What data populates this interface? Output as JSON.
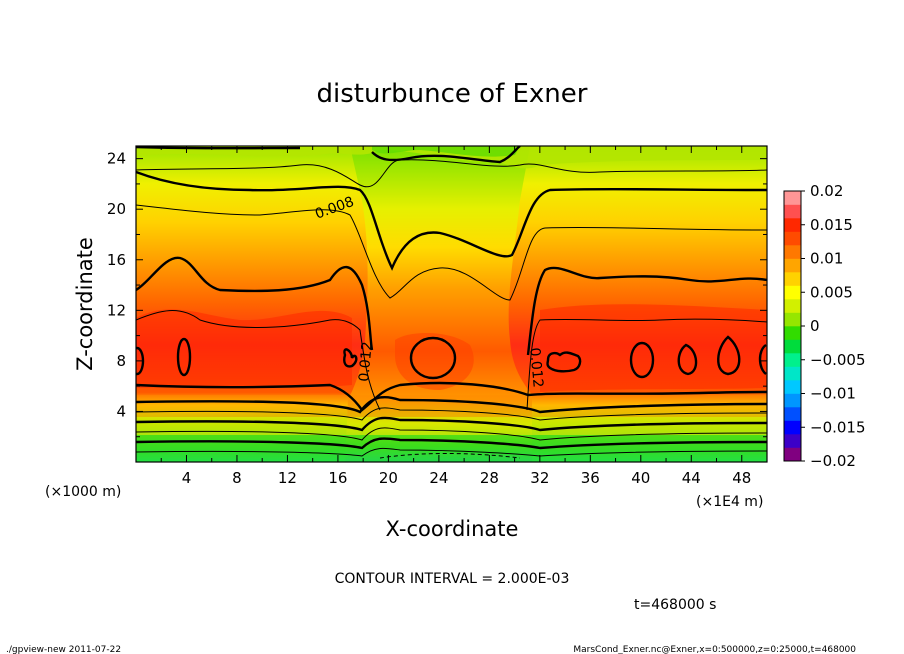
{
  "chart_data": {
    "type": "heatmap",
    "title": "disturbunce of Exner",
    "xlabel": "X-coordinate",
    "ylabel": "Z-coordinate",
    "x_unit_left": "(×1000 m)",
    "x_unit_right": "(×1E4 m)",
    "xlim": [
      0,
      50
    ],
    "ylim": [
      0,
      25
    ],
    "xticks": [
      "4",
      "8",
      "12",
      "16",
      "20",
      "24",
      "28",
      "32",
      "36",
      "40",
      "44",
      "48"
    ],
    "yticks": [
      "4",
      "8",
      "12",
      "16",
      "20",
      "24"
    ],
    "contour_interval_text": "CONTOUR INTERVAL = 2.000E-03",
    "time_text": "t=468000 s",
    "contour_labels": [
      "0.008",
      "0.012",
      "0.012"
    ],
    "colorbar": {
      "ticks": [
        "0.02",
        "0.015",
        "0.01",
        "0.005",
        "0",
        "−0.005",
        "−0.01",
        "−0.015",
        "−0.02"
      ],
      "range": [
        -0.02,
        0.02
      ],
      "colors": [
        "#800080",
        "#3c00c8",
        "#0000ff",
        "#0050ff",
        "#0096ff",
        "#00c8ff",
        "#00e6c8",
        "#00f08c",
        "#00dc3c",
        "#32dc00",
        "#96e600",
        "#d2f000",
        "#ffff00",
        "#ffd200",
        "#ffa500",
        "#ff7800",
        "#ff4b00",
        "#ff2800",
        "#ff5050",
        "#ff9696"
      ]
    },
    "key_values": {
      "x": [
        0,
        4,
        8,
        12,
        16,
        18,
        20,
        24,
        28,
        31,
        32,
        36,
        40,
        44,
        48,
        50
      ],
      "max_at_z8": [
        0.012,
        0.013,
        0.011,
        0.011,
        0.013,
        0.009,
        0.007,
        0.012,
        0.01,
        0.007,
        0.012,
        0.013,
        0.013,
        0.013,
        0.013,
        0.012
      ],
      "at_z24": [
        0.004,
        0.004,
        0.005,
        0.005,
        0.004,
        0.002,
        0.002,
        0.002,
        0.002,
        0.003,
        0.006,
        0.006,
        0.006,
        0.006,
        0.006,
        0.006
      ]
    }
  },
  "footer": {
    "left": "./gpview-new   2011-07-22",
    "right": "MarsCond_Exner.nc@Exner,x=0:500000,z=0:25000,t=468000"
  }
}
